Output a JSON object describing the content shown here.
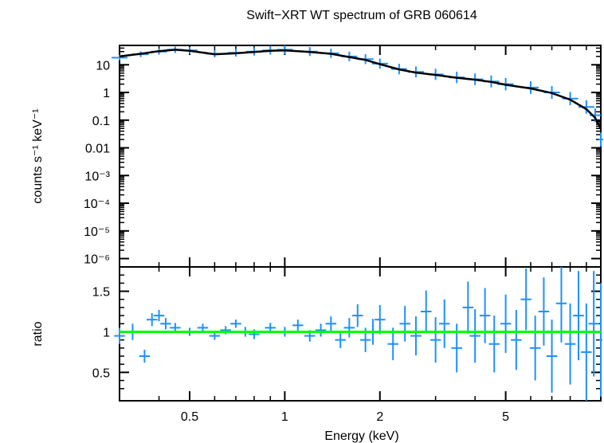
{
  "chart_data": [
    {
      "type": "scatter",
      "title": "Swift−XRT WT spectrum of GRB 060614",
      "xlabel": "Energy (keV)",
      "ylabel": "counts s⁻¹ keV⁻¹",
      "xscale": "log",
      "yscale": "log",
      "xlim": [
        0.3,
        10
      ],
      "ylim": [
        5e-07,
        50
      ],
      "x_tick_labels": [
        "0.5",
        "1",
        "2",
        "5"
      ],
      "x_ticks": [
        0.5,
        1,
        2,
        5
      ],
      "y_tick_labels": [
        "10",
        "1",
        "0.1",
        "0.01",
        "10⁻³",
        "10⁻⁴",
        "10⁻⁵",
        "10⁻⁶"
      ],
      "y_ticks": [
        10,
        1,
        0.1,
        0.01,
        0.001,
        0.0001,
        1e-05,
        1e-06
      ],
      "series": [
        {
          "role": "data",
          "color": "#1E90FF",
          "x": [
            0.3,
            0.35,
            0.4,
            0.45,
            0.5,
            0.6,
            0.7,
            0.8,
            0.9,
            1.0,
            1.2,
            1.4,
            1.6,
            1.8,
            2.0,
            2.3,
            2.6,
            3.0,
            3.5,
            4.0,
            4.5,
            5.0,
            6.0,
            7.0,
            8.0,
            9.0,
            9.6,
            10.0
          ],
          "y": [
            18,
            24,
            30,
            35,
            33,
            25,
            27,
            30,
            33,
            35,
            30,
            26,
            20,
            16,
            11,
            7,
            5.5,
            4.5,
            3.5,
            3.0,
            2.5,
            2.0,
            1.5,
            1.0,
            0.6,
            0.3,
            0.15,
            0.02
          ]
        },
        {
          "role": "model",
          "color": "#000000",
          "x": [
            0.3,
            0.35,
            0.4,
            0.45,
            0.5,
            0.6,
            0.7,
            0.8,
            0.9,
            1.0,
            1.2,
            1.4,
            1.6,
            1.8,
            2.0,
            2.3,
            2.6,
            3.0,
            3.5,
            4.0,
            4.5,
            5.0,
            6.0,
            7.0,
            8.0,
            9.0,
            9.6,
            10.0
          ],
          "y": [
            20,
            25,
            31,
            35,
            32,
            24,
            26,
            29,
            32,
            33,
            29,
            25,
            19,
            15,
            10.5,
            6.8,
            5.2,
            4.3,
            3.4,
            2.9,
            2.4,
            1.9,
            1.4,
            0.95,
            0.55,
            0.25,
            0.12,
            0.05
          ]
        }
      ]
    },
    {
      "type": "scatter",
      "xlabel": "Energy (keV)",
      "ylabel": "ratio",
      "xscale": "log",
      "xlim": [
        0.3,
        10
      ],
      "ylim": [
        0.15,
        1.8
      ],
      "y_tick_labels": [
        "1.5",
        "1",
        "0.5"
      ],
      "y_ticks": [
        1.5,
        1,
        0.5
      ],
      "reference_line": {
        "y": 1,
        "color": "#00FF00"
      },
      "series": [
        {
          "role": "ratio",
          "color": "#1E90FF",
          "x": [
            0.3,
            0.33,
            0.36,
            0.38,
            0.4,
            0.42,
            0.45,
            0.5,
            0.55,
            0.6,
            0.65,
            0.7,
            0.75,
            0.8,
            0.9,
            1.0,
            1.1,
            1.2,
            1.3,
            1.4,
            1.5,
            1.6,
            1.7,
            1.8,
            1.9,
            2.0,
            2.2,
            2.4,
            2.6,
            2.8,
            3.0,
            3.2,
            3.5,
            3.8,
            4.0,
            4.3,
            4.6,
            5.0,
            5.4,
            5.8,
            6.2,
            6.6,
            7.0,
            7.5,
            8.0,
            8.5,
            9.0,
            9.5,
            10.0
          ],
          "y": [
            0.95,
            1.0,
            0.7,
            1.15,
            1.2,
            1.1,
            1.05,
            1.0,
            1.05,
            0.95,
            1.02,
            1.1,
            1.0,
            0.97,
            1.05,
            1.0,
            1.08,
            0.95,
            1.02,
            1.1,
            0.9,
            1.05,
            1.2,
            0.9,
            1.0,
            1.15,
            0.85,
            1.1,
            0.95,
            1.25,
            0.9,
            1.1,
            0.8,
            1.3,
            0.95,
            1.2,
            0.85,
            1.1,
            0.9,
            1.4,
            0.8,
            1.25,
            0.7,
            1.35,
            0.85,
            1.2,
            0.75,
            1.1,
            0.9
          ],
          "err": [
            0.1,
            0.1,
            0.08,
            0.08,
            0.07,
            0.07,
            0.06,
            0.05,
            0.05,
            0.05,
            0.05,
            0.05,
            0.06,
            0.06,
            0.06,
            0.06,
            0.07,
            0.07,
            0.08,
            0.09,
            0.1,
            0.12,
            0.14,
            0.15,
            0.16,
            0.18,
            0.2,
            0.22,
            0.24,
            0.26,
            0.28,
            0.3,
            0.3,
            0.32,
            0.33,
            0.34,
            0.35,
            0.36,
            0.37,
            0.38,
            0.4,
            0.42,
            0.45,
            0.48,
            0.5,
            0.55,
            0.6,
            0.65,
            0.7
          ]
        }
      ]
    }
  ]
}
